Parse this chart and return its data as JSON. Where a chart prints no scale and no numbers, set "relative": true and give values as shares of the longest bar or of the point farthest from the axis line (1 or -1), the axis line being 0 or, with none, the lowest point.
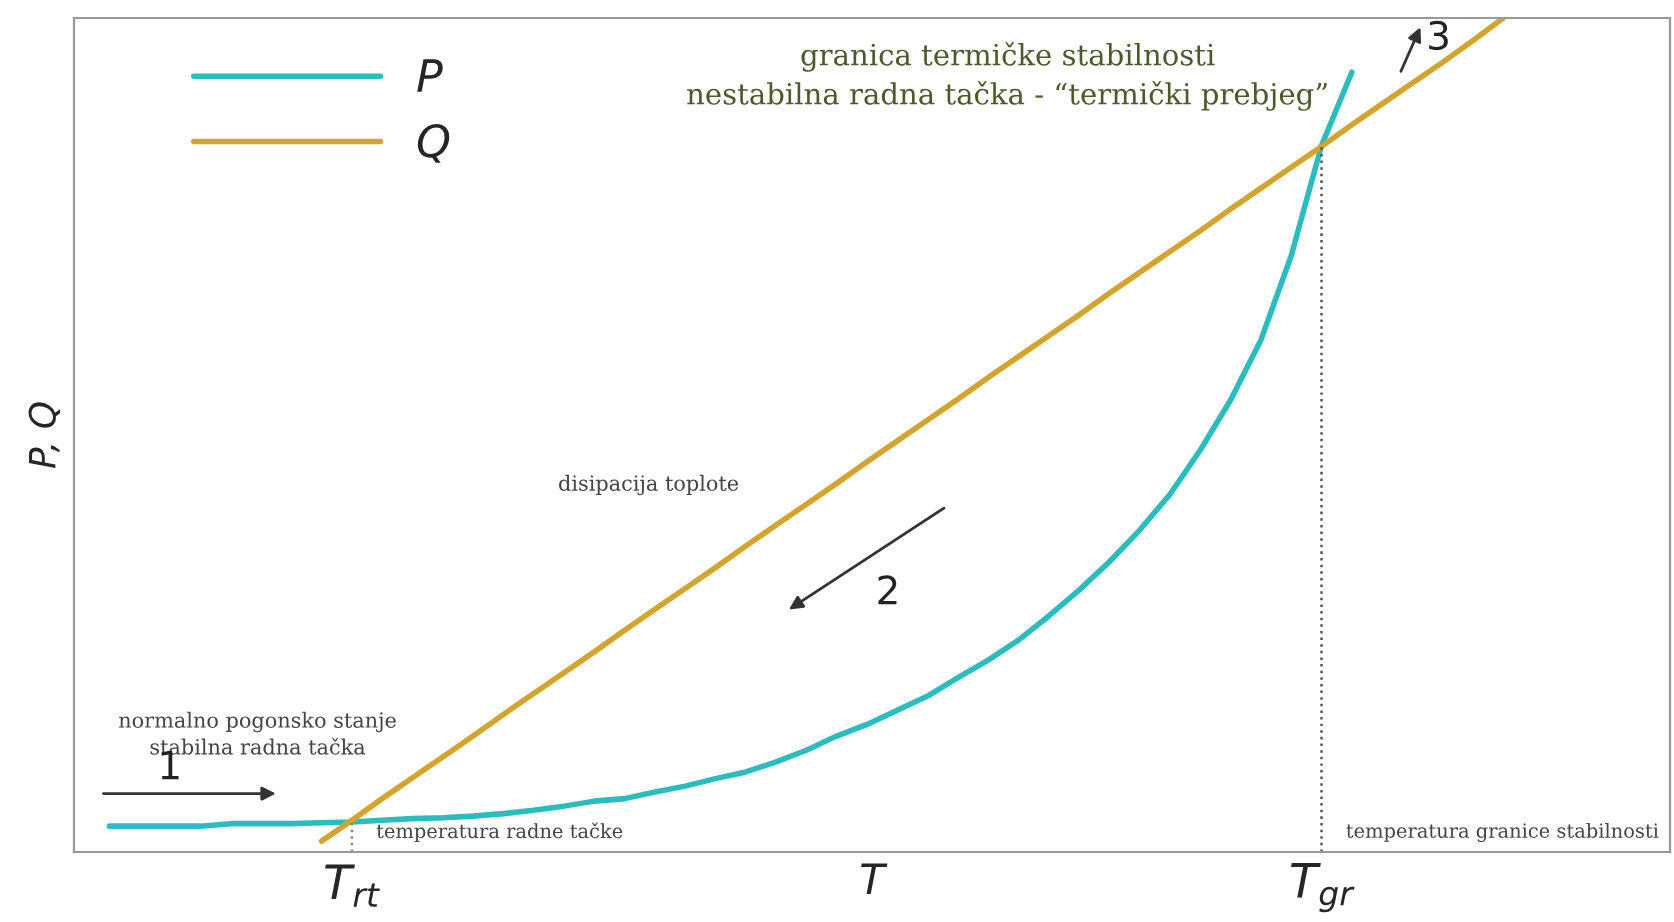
{
  "chart_data": {
    "type": "line",
    "relative": true,
    "xlabel": "T",
    "ylabel": "P, Q",
    "legend": "top left",
    "grid": false,
    "categories": [
      null,
      null,
      null,
      null,
      null,
      null,
      null,
      null,
      "T$_{rt}$",
      null,
      null,
      null,
      null,
      null,
      null,
      null,
      null,
      null,
      null,
      null,
      null,
      null,
      null,
      null,
      null,
      null,
      null,
      null,
      null,
      null,
      null,
      null,
      null,
      null,
      null,
      null,
      null,
      null,
      null,
      null,
      "T$_{gr}$",
      null,
      null,
      null,
      null,
      null,
      null,
      null,
      null,
      null,
      null,
      null
    ],
    "series": [
      {
        "name": "P",
        "color": "#2bbcbf",
        "values": [
          0.031,
          0.031,
          0.031,
          0.031,
          0.034,
          0.034,
          0.034,
          0.035,
          0.036,
          0.038,
          0.04,
          0.041,
          0.043,
          0.046,
          0.05,
          0.055,
          0.061,
          0.064,
          0.072,
          0.079,
          0.088,
          0.096,
          0.108,
          0.122,
          0.139,
          0.153,
          0.17,
          0.187,
          0.209,
          0.23,
          0.254,
          0.283,
          0.314,
          0.348,
          0.386,
          0.429,
          0.482,
          0.542,
          0.614,
          0.715,
          0.847,
          0.935,
          null,
          null,
          null,
          null,
          null,
          null,
          null,
          null,
          null,
          null
        ]
      },
      {
        "name": "Q",
        "color": "#d4a52c",
        "values": [
          null,
          null,
          null,
          null,
          null,
          null,
          null,
          0.013,
          0.038,
          0.064,
          0.089,
          0.114,
          0.139,
          0.165,
          0.19,
          0.215,
          0.24,
          0.266,
          0.291,
          0.316,
          0.341,
          0.367,
          0.392,
          0.417,
          0.442,
          0.468,
          0.493,
          0.518,
          0.543,
          0.569,
          0.594,
          0.619,
          0.644,
          0.67,
          0.695,
          0.72,
          0.745,
          0.771,
          0.796,
          0.821,
          0.846,
          0.872,
          0.897,
          0.922,
          0.947,
          0.973,
          1.0,
          null,
          null,
          null,
          null,
          null
        ]
      }
    ],
    "ref_lines": [
      {
        "axis": "x",
        "value": "T$_{rt}$",
        "label": "temperatura radne tačke",
        "color": "#888888",
        "line_style": "dotted"
      },
      {
        "axis": "x",
        "value": "T$_{gr}$",
        "label": "temperatura granice stabilnosti",
        "color": "#555555",
        "line_style": "dotted"
      }
    ],
    "annotations": [
      "granica termičke stabilnosti\nnestabilna radna tačka - “termički prebjeg”",
      "disipacija toplote",
      "normalno pogonsko stanje\nstabilna radna tačka",
      "1",
      "2",
      "3"
    ]
  }
}
